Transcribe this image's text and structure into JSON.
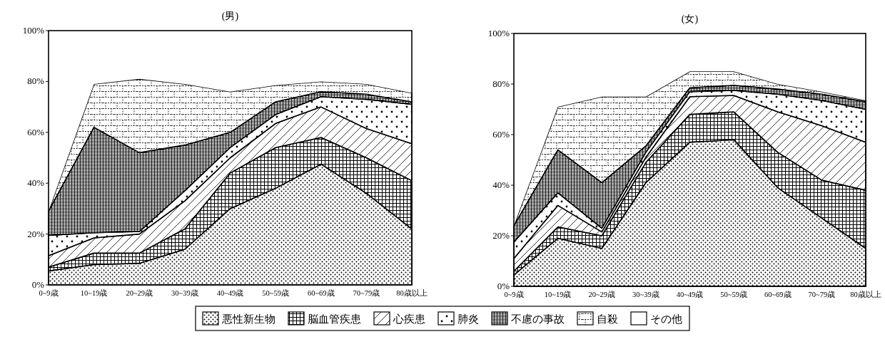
{
  "chart_data": [
    {
      "type": "area",
      "stacked": true,
      "title": "(男)",
      "categories": [
        "0~9歳",
        "10~19歳",
        "20~29歳",
        "30~39歳",
        "40~49歳",
        "50~59歳",
        "60~69歳",
        "70~79歳",
        "80歳以上"
      ],
      "ylim": [
        0,
        100
      ],
      "yticks": [
        {
          "value": 0,
          "label": "0%"
        },
        {
          "value": 20,
          "label": "20%"
        },
        {
          "value": 40,
          "label": "40%"
        },
        {
          "value": 60,
          "label": "60%"
        },
        {
          "value": 80,
          "label": "80%"
        },
        {
          "value": 100,
          "label": "100%"
        }
      ],
      "legend": "bottom",
      "series": [
        {
          "name": "悪性新生物",
          "color": "#000000",
          "values": [
            5.5,
            8,
            8.5,
            14,
            30,
            38,
            47.5,
            36,
            22
          ]
        },
        {
          "name": "脳血管疾患",
          "color": "#000000",
          "values": [
            1.5,
            4.5,
            4,
            8,
            14,
            16,
            10.5,
            14,
            19
          ]
        },
        {
          "name": "心疾患",
          "color": "#000000",
          "values": [
            4.5,
            6,
            7.5,
            11,
            6,
            9.5,
            12,
            11.5,
            14.5
          ]
        },
        {
          "name": "肺炎",
          "color": "#000000",
          "values": [
            8,
            2,
            1,
            4,
            4,
            3.5,
            4,
            11.5,
            15.5
          ]
        },
        {
          "name": "不慮の事故",
          "color": "#000000",
          "values": [
            9.5,
            41.5,
            31,
            18,
            6,
            5,
            2,
            2,
            1
          ]
        },
        {
          "name": "自殺",
          "color": "#000000",
          "values": [
            0,
            17,
            29,
            24,
            16,
            6.5,
            4,
            4,
            3.5
          ]
        },
        {
          "name": "その他",
          "color": "#ffffff",
          "values": [
            71,
            21,
            19,
            21,
            24,
            21.5,
            20,
            21,
            24.5
          ]
        }
      ]
    },
    {
      "type": "area",
      "stacked": true,
      "title": "(女)",
      "categories": [
        "0~9歳",
        "10~19歳",
        "20~29歳",
        "30~39歳",
        "40~49歳",
        "50~59歳",
        "60~69歳",
        "70~79歳",
        "80歳以上"
      ],
      "ylim": [
        0,
        100
      ],
      "yticks": [
        {
          "value": 0,
          "label": "0%"
        },
        {
          "value": 20,
          "label": "20%"
        },
        {
          "value": 40,
          "label": "40%"
        },
        {
          "value": 60,
          "label": "60%"
        },
        {
          "value": 80,
          "label": "80%"
        },
        {
          "value": 100,
          "label": "100%"
        }
      ],
      "legend": "bottom",
      "series": [
        {
          "name": "悪性新生物",
          "color": "#000000",
          "values": [
            4.5,
            19,
            15,
            41,
            57,
            58,
            39,
            27,
            15
          ]
        },
        {
          "name": "脳血管疾患",
          "color": "#000000",
          "values": [
            1.5,
            4.5,
            5,
            8,
            11,
            11,
            14,
            15,
            23
          ]
        },
        {
          "name": "心疾患",
          "color": "#000000",
          "values": [
            5,
            8.5,
            1.5,
            2,
            7,
            6.5,
            16,
            21.5,
            19
          ]
        },
        {
          "name": "肺炎",
          "color": "#000000",
          "values": [
            6.5,
            5,
            1.5,
            2,
            2,
            2,
            7,
            10,
            13
          ]
        },
        {
          "name": "不慮の事故",
          "color": "#000000",
          "values": [
            6.5,
            17,
            18,
            2.5,
            1.5,
            2,
            2,
            2.5,
            3
          ]
        },
        {
          "name": "自殺",
          "color": "#000000",
          "values": [
            0,
            17,
            34,
            19.5,
            6.5,
            5.5,
            2,
            1,
            0.5
          ]
        },
        {
          "name": "その他",
          "color": "#ffffff",
          "values": [
            76,
            29,
            25,
            25,
            15,
            15,
            20,
            23,
            26.5
          ]
        }
      ]
    }
  ]
}
